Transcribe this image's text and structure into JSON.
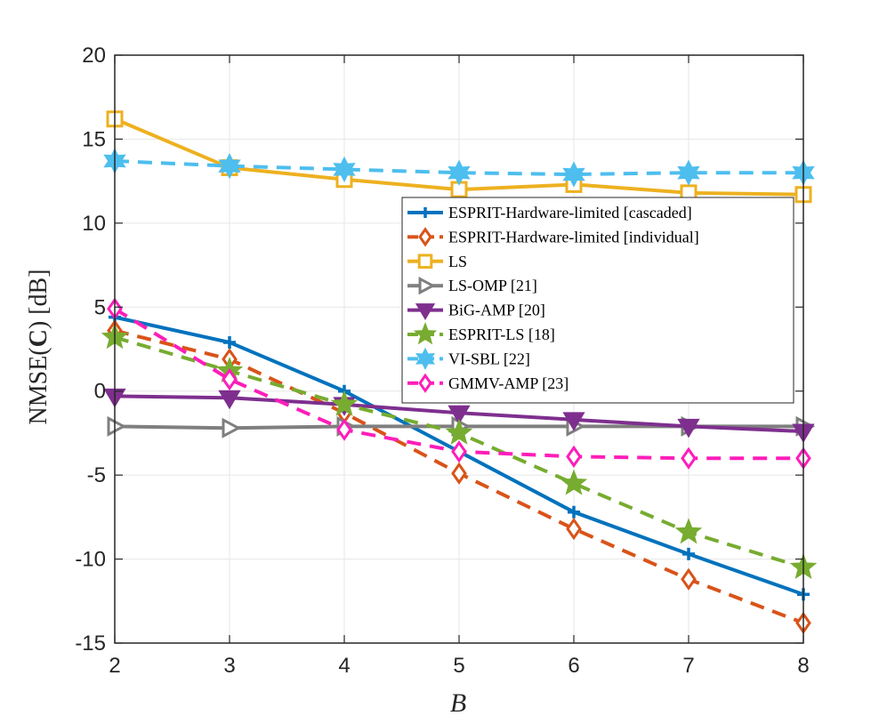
{
  "chart_data": {
    "type": "line",
    "title": "",
    "xlabel": "B",
    "ylabel": "NMSE(C) [dB]",
    "ylabel_parts": {
      "prefix": "NMSE(",
      "symbol": "C",
      "suffix": ") [dB]"
    },
    "x": [
      2,
      3,
      4,
      5,
      6,
      7,
      8
    ],
    "xlim": [
      2,
      8
    ],
    "ylim": [
      -15,
      20
    ],
    "xticks": [
      2,
      3,
      4,
      5,
      6,
      7,
      8
    ],
    "yticks": [
      20,
      15,
      10,
      5,
      0,
      -5,
      -10,
      -15
    ],
    "grid": true,
    "legend_position": "center-right",
    "series": [
      {
        "name": "ESPRIT-Hardware-limited [cascaded]",
        "color": "#0072BD",
        "dash": "solid",
        "marker": "plus",
        "values": [
          4.4,
          2.9,
          0.0,
          -3.6,
          -7.2,
          -9.7,
          -12.1
        ]
      },
      {
        "name": "ESPRIT-Hardware-limited [individual]",
        "color": "#D95319",
        "dash": "dashed",
        "marker": "diamond",
        "values": [
          3.6,
          1.9,
          -1.3,
          -4.9,
          -8.2,
          -11.2,
          -13.8
        ]
      },
      {
        "name": "LS",
        "color": "#EDB120",
        "dash": "solid",
        "marker": "square",
        "values": [
          16.2,
          13.3,
          12.6,
          12.0,
          12.3,
          11.8,
          11.7
        ]
      },
      {
        "name": "LS-OMP [21]",
        "color": "#7F7F7F",
        "dash": "solid",
        "marker": "triangle-right",
        "values": [
          -2.1,
          -2.2,
          -2.1,
          -2.1,
          -2.1,
          -2.1,
          -2.1
        ]
      },
      {
        "name": "BiG-AMP [20]",
        "color": "#7E2F8E",
        "dash": "solid",
        "marker": "triangle-down",
        "values": [
          -0.3,
          -0.4,
          -0.8,
          -1.3,
          -1.7,
          -2.1,
          -2.4
        ]
      },
      {
        "name": "ESPRIT-LS [18]",
        "color": "#77AC30",
        "dash": "dashed",
        "marker": "pentagram",
        "values": [
          3.2,
          1.2,
          -0.8,
          -2.5,
          -5.5,
          -8.4,
          -10.5
        ]
      },
      {
        "name": "VI-SBL [22]",
        "color": "#4DBEEE",
        "dash": "dashed",
        "marker": "hexagram",
        "values": [
          13.7,
          13.4,
          13.2,
          13.0,
          12.9,
          13.0,
          13.0
        ]
      },
      {
        "name": "GMMV-AMP [23]",
        "color": "#FF1DBA",
        "dash": "dashed",
        "marker": "diamond",
        "values": [
          4.9,
          0.7,
          -2.3,
          -3.6,
          -3.9,
          -4.0,
          -4.0
        ]
      }
    ]
  }
}
